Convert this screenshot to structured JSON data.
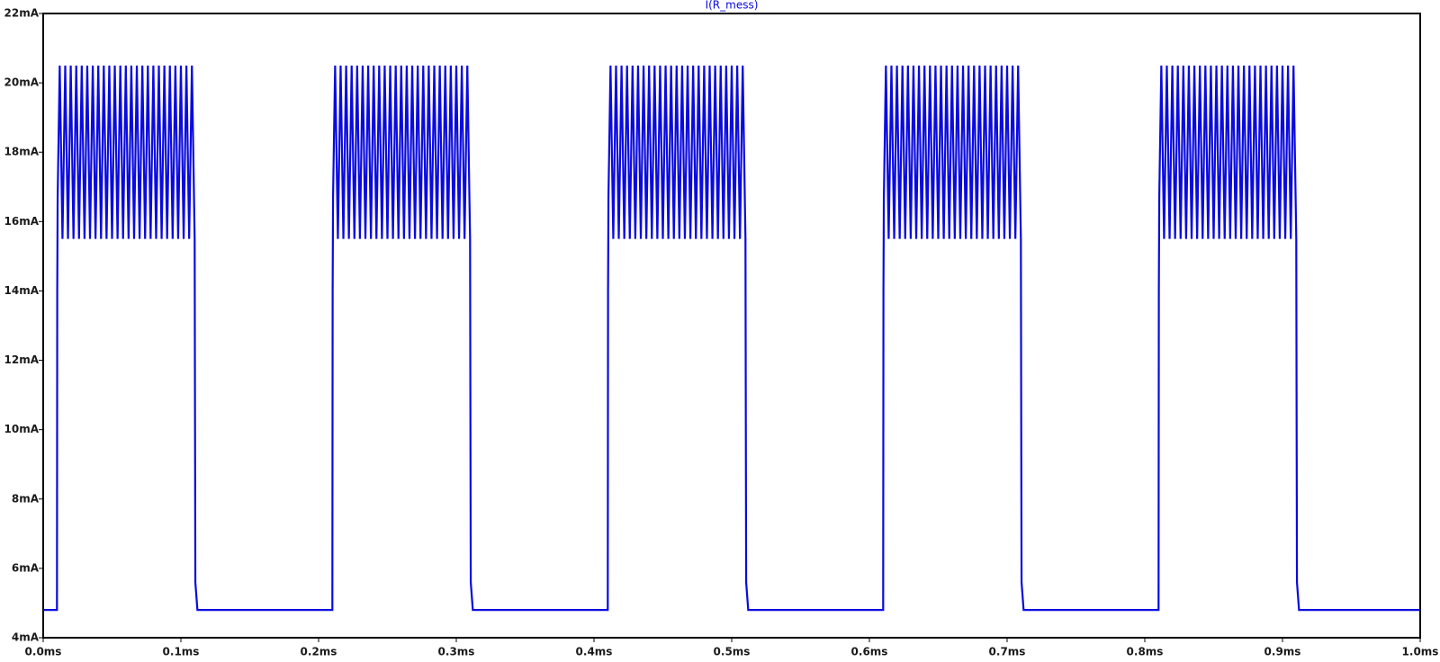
{
  "chart_data": {
    "type": "line",
    "title": "I(R_mess)",
    "xlim": [
      0,
      1
    ],
    "ylim": [
      4,
      22
    ],
    "xticks": [
      {
        "value": 0,
        "label": "0.0ms"
      },
      {
        "value": 0.1,
        "label": "0.1ms"
      },
      {
        "value": 0.2,
        "label": "0.2ms"
      },
      {
        "value": 0.3,
        "label": "0.3ms"
      },
      {
        "value": 0.4,
        "label": "0.4ms"
      },
      {
        "value": 0.5,
        "label": "0.5ms"
      },
      {
        "value": 0.6,
        "label": "0.6ms"
      },
      {
        "value": 0.7,
        "label": "0.7ms"
      },
      {
        "value": 0.8,
        "label": "0.8ms"
      },
      {
        "value": 0.9,
        "label": "0.9ms"
      },
      {
        "value": 1,
        "label": "1.0ms"
      }
    ],
    "yticks": [
      {
        "value": 4,
        "label": "4mA"
      },
      {
        "value": 6,
        "label": "6mA"
      },
      {
        "value": 8,
        "label": "8mA"
      },
      {
        "value": 10,
        "label": "10mA"
      },
      {
        "value": 12,
        "label": "12mA"
      },
      {
        "value": 14,
        "label": "14mA"
      },
      {
        "value": 16,
        "label": "16mA"
      },
      {
        "value": 18,
        "label": "18mA"
      },
      {
        "value": 20,
        "label": "20mA"
      },
      {
        "value": 22,
        "label": "22mA"
      }
    ],
    "x": [
      0,
      0.01,
      0.0102,
      0.0105,
      0.012,
      0.014,
      0.016,
      0.018,
      0.02,
      0.022,
      0.024,
      0.026,
      0.028,
      0.03,
      0.032,
      0.034,
      0.036,
      0.038,
      0.04,
      0.042,
      0.044,
      0.046,
      0.048,
      0.05,
      0.052,
      0.054,
      0.056,
      0.058,
      0.06,
      0.062,
      0.064,
      0.066,
      0.068,
      0.07,
      0.072,
      0.074,
      0.076,
      0.078,
      0.08,
      0.082,
      0.084,
      0.086,
      0.088,
      0.09,
      0.092,
      0.094,
      0.096,
      0.098,
      0.1,
      0.102,
      0.104,
      0.106,
      0.108,
      0.11,
      0.1102,
      0.1105,
      0.112,
      0.21,
      0.2102,
      0.2105,
      0.212,
      0.214,
      0.216,
      0.218,
      0.22,
      0.222,
      0.224,
      0.226,
      0.228,
      0.23,
      0.232,
      0.234,
      0.236,
      0.238,
      0.24,
      0.242,
      0.244,
      0.246,
      0.248,
      0.25,
      0.252,
      0.254,
      0.256,
      0.258,
      0.26,
      0.262,
      0.264,
      0.266,
      0.268,
      0.27,
      0.272,
      0.274,
      0.276,
      0.278,
      0.28,
      0.282,
      0.284,
      0.286,
      0.288,
      0.29,
      0.292,
      0.294,
      0.296,
      0.298,
      0.3,
      0.302,
      0.304,
      0.306,
      0.308,
      0.31,
      0.3102,
      0.3105,
      0.312,
      0.41,
      0.4102,
      0.4105,
      0.412,
      0.414,
      0.416,
      0.418,
      0.42,
      0.422,
      0.424,
      0.426,
      0.428,
      0.43,
      0.432,
      0.434,
      0.436,
      0.438,
      0.44,
      0.442,
      0.444,
      0.446,
      0.448,
      0.45,
      0.452,
      0.454,
      0.456,
      0.458,
      0.46,
      0.462,
      0.464,
      0.466,
      0.468,
      0.47,
      0.472,
      0.474,
      0.476,
      0.478,
      0.48,
      0.482,
      0.484,
      0.486,
      0.488,
      0.49,
      0.492,
      0.494,
      0.496,
      0.498,
      0.5,
      0.502,
      0.504,
      0.506,
      0.508,
      0.51,
      0.5102,
      0.5105,
      0.512,
      0.61,
      0.6102,
      0.6105,
      0.612,
      0.614,
      0.616,
      0.618,
      0.62,
      0.622,
      0.624,
      0.626,
      0.628,
      0.63,
      0.632,
      0.634,
      0.636,
      0.638,
      0.64,
      0.642,
      0.644,
      0.646,
      0.648,
      0.65,
      0.652,
      0.654,
      0.656,
      0.658,
      0.66,
      0.662,
      0.664,
      0.666,
      0.668,
      0.67,
      0.672,
      0.674,
      0.676,
      0.678,
      0.68,
      0.682,
      0.684,
      0.686,
      0.688,
      0.69,
      0.692,
      0.694,
      0.696,
      0.698,
      0.7,
      0.702,
      0.704,
      0.706,
      0.708,
      0.71,
      0.7102,
      0.7105,
      0.712,
      0.81,
      0.8102,
      0.8105,
      0.812,
      0.814,
      0.816,
      0.818,
      0.82,
      0.822,
      0.824,
      0.826,
      0.828,
      0.83,
      0.832,
      0.834,
      0.836,
      0.838,
      0.84,
      0.842,
      0.844,
      0.846,
      0.848,
      0.85,
      0.852,
      0.854,
      0.856,
      0.858,
      0.86,
      0.862,
      0.864,
      0.866,
      0.868,
      0.87,
      0.872,
      0.874,
      0.876,
      0.878,
      0.88,
      0.882,
      0.884,
      0.886,
      0.888,
      0.89,
      0.892,
      0.894,
      0.896,
      0.898,
      0.9,
      0.902,
      0.904,
      0.906,
      0.908,
      0.91,
      0.9102,
      0.9105,
      0.912,
      1
    ],
    "series": [
      {
        "name": "I(R_mess)",
        "color": "#0a0ae0",
        "values": [
          4.8,
          4.8,
          14,
          16.7,
          20.5,
          15.5,
          20.5,
          15.5,
          20.5,
          15.5,
          20.5,
          15.5,
          20.5,
          15.5,
          20.5,
          15.5,
          20.5,
          15.5,
          20.5,
          15.5,
          20.5,
          15.5,
          20.5,
          15.5,
          20.5,
          15.5,
          20.5,
          15.5,
          20.5,
          15.5,
          20.5,
          15.5,
          20.5,
          15.5,
          20.5,
          15.5,
          20.5,
          15.5,
          20.5,
          15.5,
          20.5,
          15.5,
          20.5,
          15.5,
          20.5,
          15.5,
          20.5,
          15.5,
          20.5,
          15.5,
          20.5,
          15.5,
          20.5,
          15.5,
          11.3,
          5.6,
          4.8,
          4.8,
          14,
          16.7,
          20.5,
          15.5,
          20.5,
          15.5,
          20.5,
          15.5,
          20.5,
          15.5,
          20.5,
          15.5,
          20.5,
          15.5,
          20.5,
          15.5,
          20.5,
          15.5,
          20.5,
          15.5,
          20.5,
          15.5,
          20.5,
          15.5,
          20.5,
          15.5,
          20.5,
          15.5,
          20.5,
          15.5,
          20.5,
          15.5,
          20.5,
          15.5,
          20.5,
          15.5,
          20.5,
          15.5,
          20.5,
          15.5,
          20.5,
          15.5,
          20.5,
          15.5,
          20.5,
          15.5,
          20.5,
          15.5,
          20.5,
          15.5,
          20.5,
          15.5,
          11.3,
          5.6,
          4.8,
          4.8,
          14,
          16.7,
          20.5,
          15.5,
          20.5,
          15.5,
          20.5,
          15.5,
          20.5,
          15.5,
          20.5,
          15.5,
          20.5,
          15.5,
          20.5,
          15.5,
          20.5,
          15.5,
          20.5,
          15.5,
          20.5,
          15.5,
          20.5,
          15.5,
          20.5,
          15.5,
          20.5,
          15.5,
          20.5,
          15.5,
          20.5,
          15.5,
          20.5,
          15.5,
          20.5,
          15.5,
          20.5,
          15.5,
          20.5,
          15.5,
          20.5,
          15.5,
          20.5,
          15.5,
          20.5,
          15.5,
          20.5,
          15.5,
          20.5,
          15.5,
          20.5,
          15.5,
          11.3,
          5.6,
          4.8,
          4.8,
          14,
          16.7,
          20.5,
          15.5,
          20.5,
          15.5,
          20.5,
          15.5,
          20.5,
          15.5,
          20.5,
          15.5,
          20.5,
          15.5,
          20.5,
          15.5,
          20.5,
          15.5,
          20.5,
          15.5,
          20.5,
          15.5,
          20.5,
          15.5,
          20.5,
          15.5,
          20.5,
          15.5,
          20.5,
          15.5,
          20.5,
          15.5,
          20.5,
          15.5,
          20.5,
          15.5,
          20.5,
          15.5,
          20.5,
          15.5,
          20.5,
          15.5,
          20.5,
          15.5,
          20.5,
          15.5,
          20.5,
          15.5,
          20.5,
          15.5,
          20.5,
          15.5,
          11.3,
          5.6,
          4.8,
          4.8,
          14,
          16.7,
          20.5,
          15.5,
          20.5,
          15.5,
          20.5,
          15.5,
          20.5,
          15.5,
          20.5,
          15.5,
          20.5,
          15.5,
          20.5,
          15.5,
          20.5,
          15.5,
          20.5,
          15.5,
          20.5,
          15.5,
          20.5,
          15.5,
          20.5,
          15.5,
          20.5,
          15.5,
          20.5,
          15.5,
          20.5,
          15.5,
          20.5,
          15.5,
          20.5,
          15.5,
          20.5,
          15.5,
          20.5,
          15.5,
          20.5,
          15.5,
          20.5,
          15.5,
          20.5,
          15.5,
          20.5,
          15.5,
          20.5,
          15.5,
          20.5,
          15.5,
          11.3,
          5.6,
          4.8,
          4.8
        ]
      }
    ]
  }
}
